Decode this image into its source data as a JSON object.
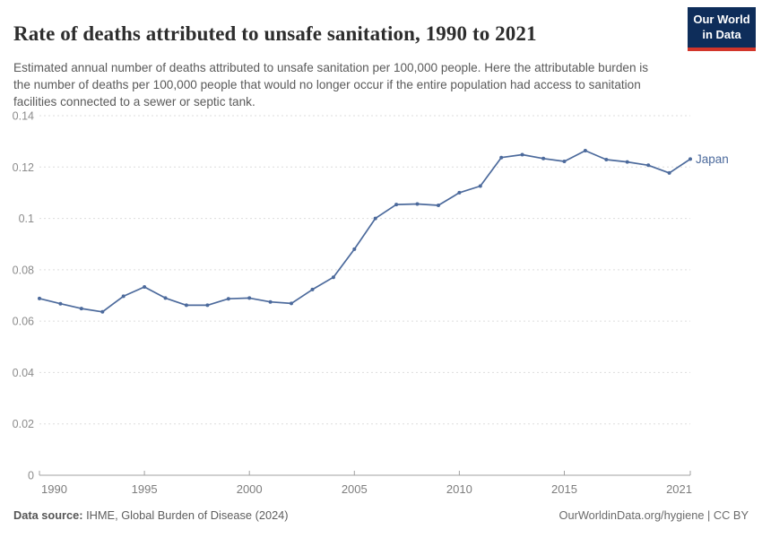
{
  "header": {
    "title": "Rate of deaths attributed to unsafe sanitation, 1990 to 2021",
    "subtitle": "Estimated annual number of deaths attributed to unsafe sanitation per 100,000 people. Here the attributable burden is the number of deaths per 100,000 people that would no longer occur if the entire population had access to sanitation facilities connected to a sewer or septic tank.",
    "logo": {
      "line1": "Our World",
      "line2": "in Data",
      "bg_color": "#0e2d5a",
      "accent_color": "#d2352a"
    }
  },
  "chart_data": {
    "type": "line",
    "title": "Rate of deaths attributed to unsafe sanitation, 1990 to 2021",
    "xlabel": "",
    "ylabel": "",
    "xlim": [
      1990,
      2021
    ],
    "ylim": [
      0,
      0.14
    ],
    "grid": "horizontal-dashed",
    "legend_position": "end-of-line",
    "x": [
      1990,
      1991,
      1992,
      1993,
      1994,
      1995,
      1996,
      1997,
      1998,
      1999,
      2000,
      2001,
      2002,
      2003,
      2004,
      2005,
      2006,
      2007,
      2008,
      2009,
      2010,
      2011,
      2012,
      2013,
      2014,
      2015,
      2016,
      2017,
      2018,
      2019,
      2020,
      2021
    ],
    "series": [
      {
        "name": "Japan",
        "color": "#4C6A9C",
        "values": [
          0.0688,
          0.0668,
          0.0649,
          0.0636,
          0.0697,
          0.0733,
          0.069,
          0.0662,
          0.0662,
          0.0687,
          0.069,
          0.0675,
          0.0669,
          0.0723,
          0.0771,
          0.088,
          0.1,
          0.1054,
          0.1056,
          0.1051,
          0.11,
          0.1126,
          0.1237,
          0.1248,
          0.1233,
          0.1222,
          0.1264,
          0.1229,
          0.122,
          0.1207,
          0.1177,
          0.1231
        ]
      }
    ],
    "y_ticks": [
      {
        "value": 0,
        "label": "0"
      },
      {
        "value": 0.02,
        "label": "0.02"
      },
      {
        "value": 0.04,
        "label": "0.04"
      },
      {
        "value": 0.06,
        "label": "0.06"
      },
      {
        "value": 0.08,
        "label": "0.08"
      },
      {
        "value": 0.1,
        "label": "0.1"
      },
      {
        "value": 0.12,
        "label": "0.12"
      },
      {
        "value": 0.14,
        "label": "0.14"
      }
    ],
    "x_ticks": [
      {
        "value": 1990,
        "label": "1990"
      },
      {
        "value": 1995,
        "label": "1995"
      },
      {
        "value": 2000,
        "label": "2000"
      },
      {
        "value": 2005,
        "label": "2005"
      },
      {
        "value": 2010,
        "label": "2010"
      },
      {
        "value": 2015,
        "label": "2015"
      },
      {
        "value": 2021,
        "label": "2021"
      }
    ],
    "colors": {
      "gridline": "#dddddd",
      "axis_line": "#a1a1a1",
      "tick_label": "#8c8c8c"
    }
  },
  "footer": {
    "source_label": "Data source:",
    "source_text": " IHME, Global Burden of Disease (2024)",
    "credit": "OurWorldinData.org/hygiene | CC BY"
  }
}
